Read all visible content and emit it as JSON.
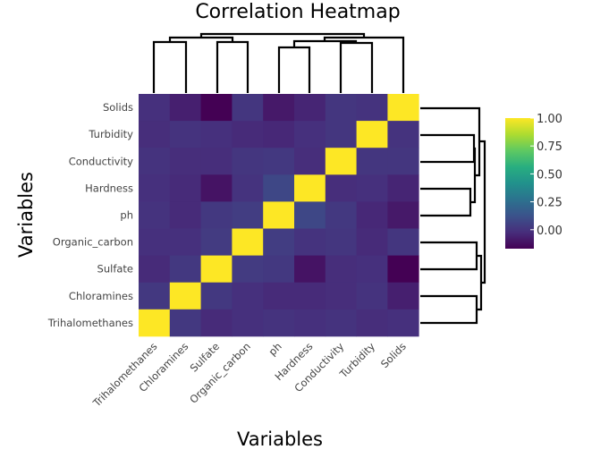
{
  "chart_data": {
    "type": "heatmap",
    "title": "Correlation Heatmap",
    "xlabel": "Variables",
    "ylabel": "Variables",
    "x_categories": [
      "Trihalomethanes",
      "Chloramines",
      "Sulfate",
      "Organic_carbon",
      "ph",
      "Hardness",
      "Conductivity",
      "Turbidity",
      "Solids"
    ],
    "y_categories_top_to_bottom": [
      "Solids",
      "Turbidity",
      "Conductivity",
      "Hardness",
      "ph",
      "Organic_carbon",
      "Sulfate",
      "Chloramines",
      "Trihalomethanes"
    ],
    "matrix": [
      [
        -0.01,
        -0.07,
        -0.17,
        0.01,
        -0.09,
        -0.05,
        0.01,
        -0.0,
        1.0
      ],
      [
        -0.02,
        0.0,
        -0.01,
        -0.03,
        -0.04,
        -0.01,
        0.01,
        1.0,
        -0.0
      ],
      [
        0.0,
        -0.02,
        -0.02,
        0.01,
        0.02,
        -0.02,
        1.0,
        0.01,
        0.01
      ],
      [
        -0.01,
        -0.03,
        -0.11,
        0.0,
        0.08,
        1.0,
        -0.02,
        -0.01,
        -0.05
      ],
      [
        0.0,
        -0.03,
        0.02,
        0.04,
        1.0,
        0.08,
        0.02,
        -0.04,
        -0.09
      ],
      [
        -0.01,
        -0.01,
        0.03,
        1.0,
        0.04,
        0.0,
        0.01,
        -0.03,
        0.01
      ],
      [
        -0.03,
        0.02,
        1.0,
        0.03,
        0.02,
        -0.11,
        -0.02,
        -0.01,
        -0.17
      ],
      [
        0.02,
        1.0,
        0.02,
        -0.01,
        -0.03,
        -0.03,
        -0.02,
        0.0,
        -0.07
      ],
      [
        1.0,
        0.02,
        -0.03,
        -0.01,
        0.0,
        -0.01,
        0.0,
        -0.02,
        -0.01
      ]
    ],
    "colorbar": {
      "colorscale": "viridis",
      "range": [
        -0.17,
        1.0
      ],
      "ticks": [
        "1.00",
        "0.75",
        "0.50",
        "0.25",
        "0.00"
      ],
      "tick_values": [
        1.0,
        0.75,
        0.5,
        0.25,
        0.0
      ]
    },
    "dendrograms": [
      "top",
      "right"
    ],
    "grid": false
  }
}
